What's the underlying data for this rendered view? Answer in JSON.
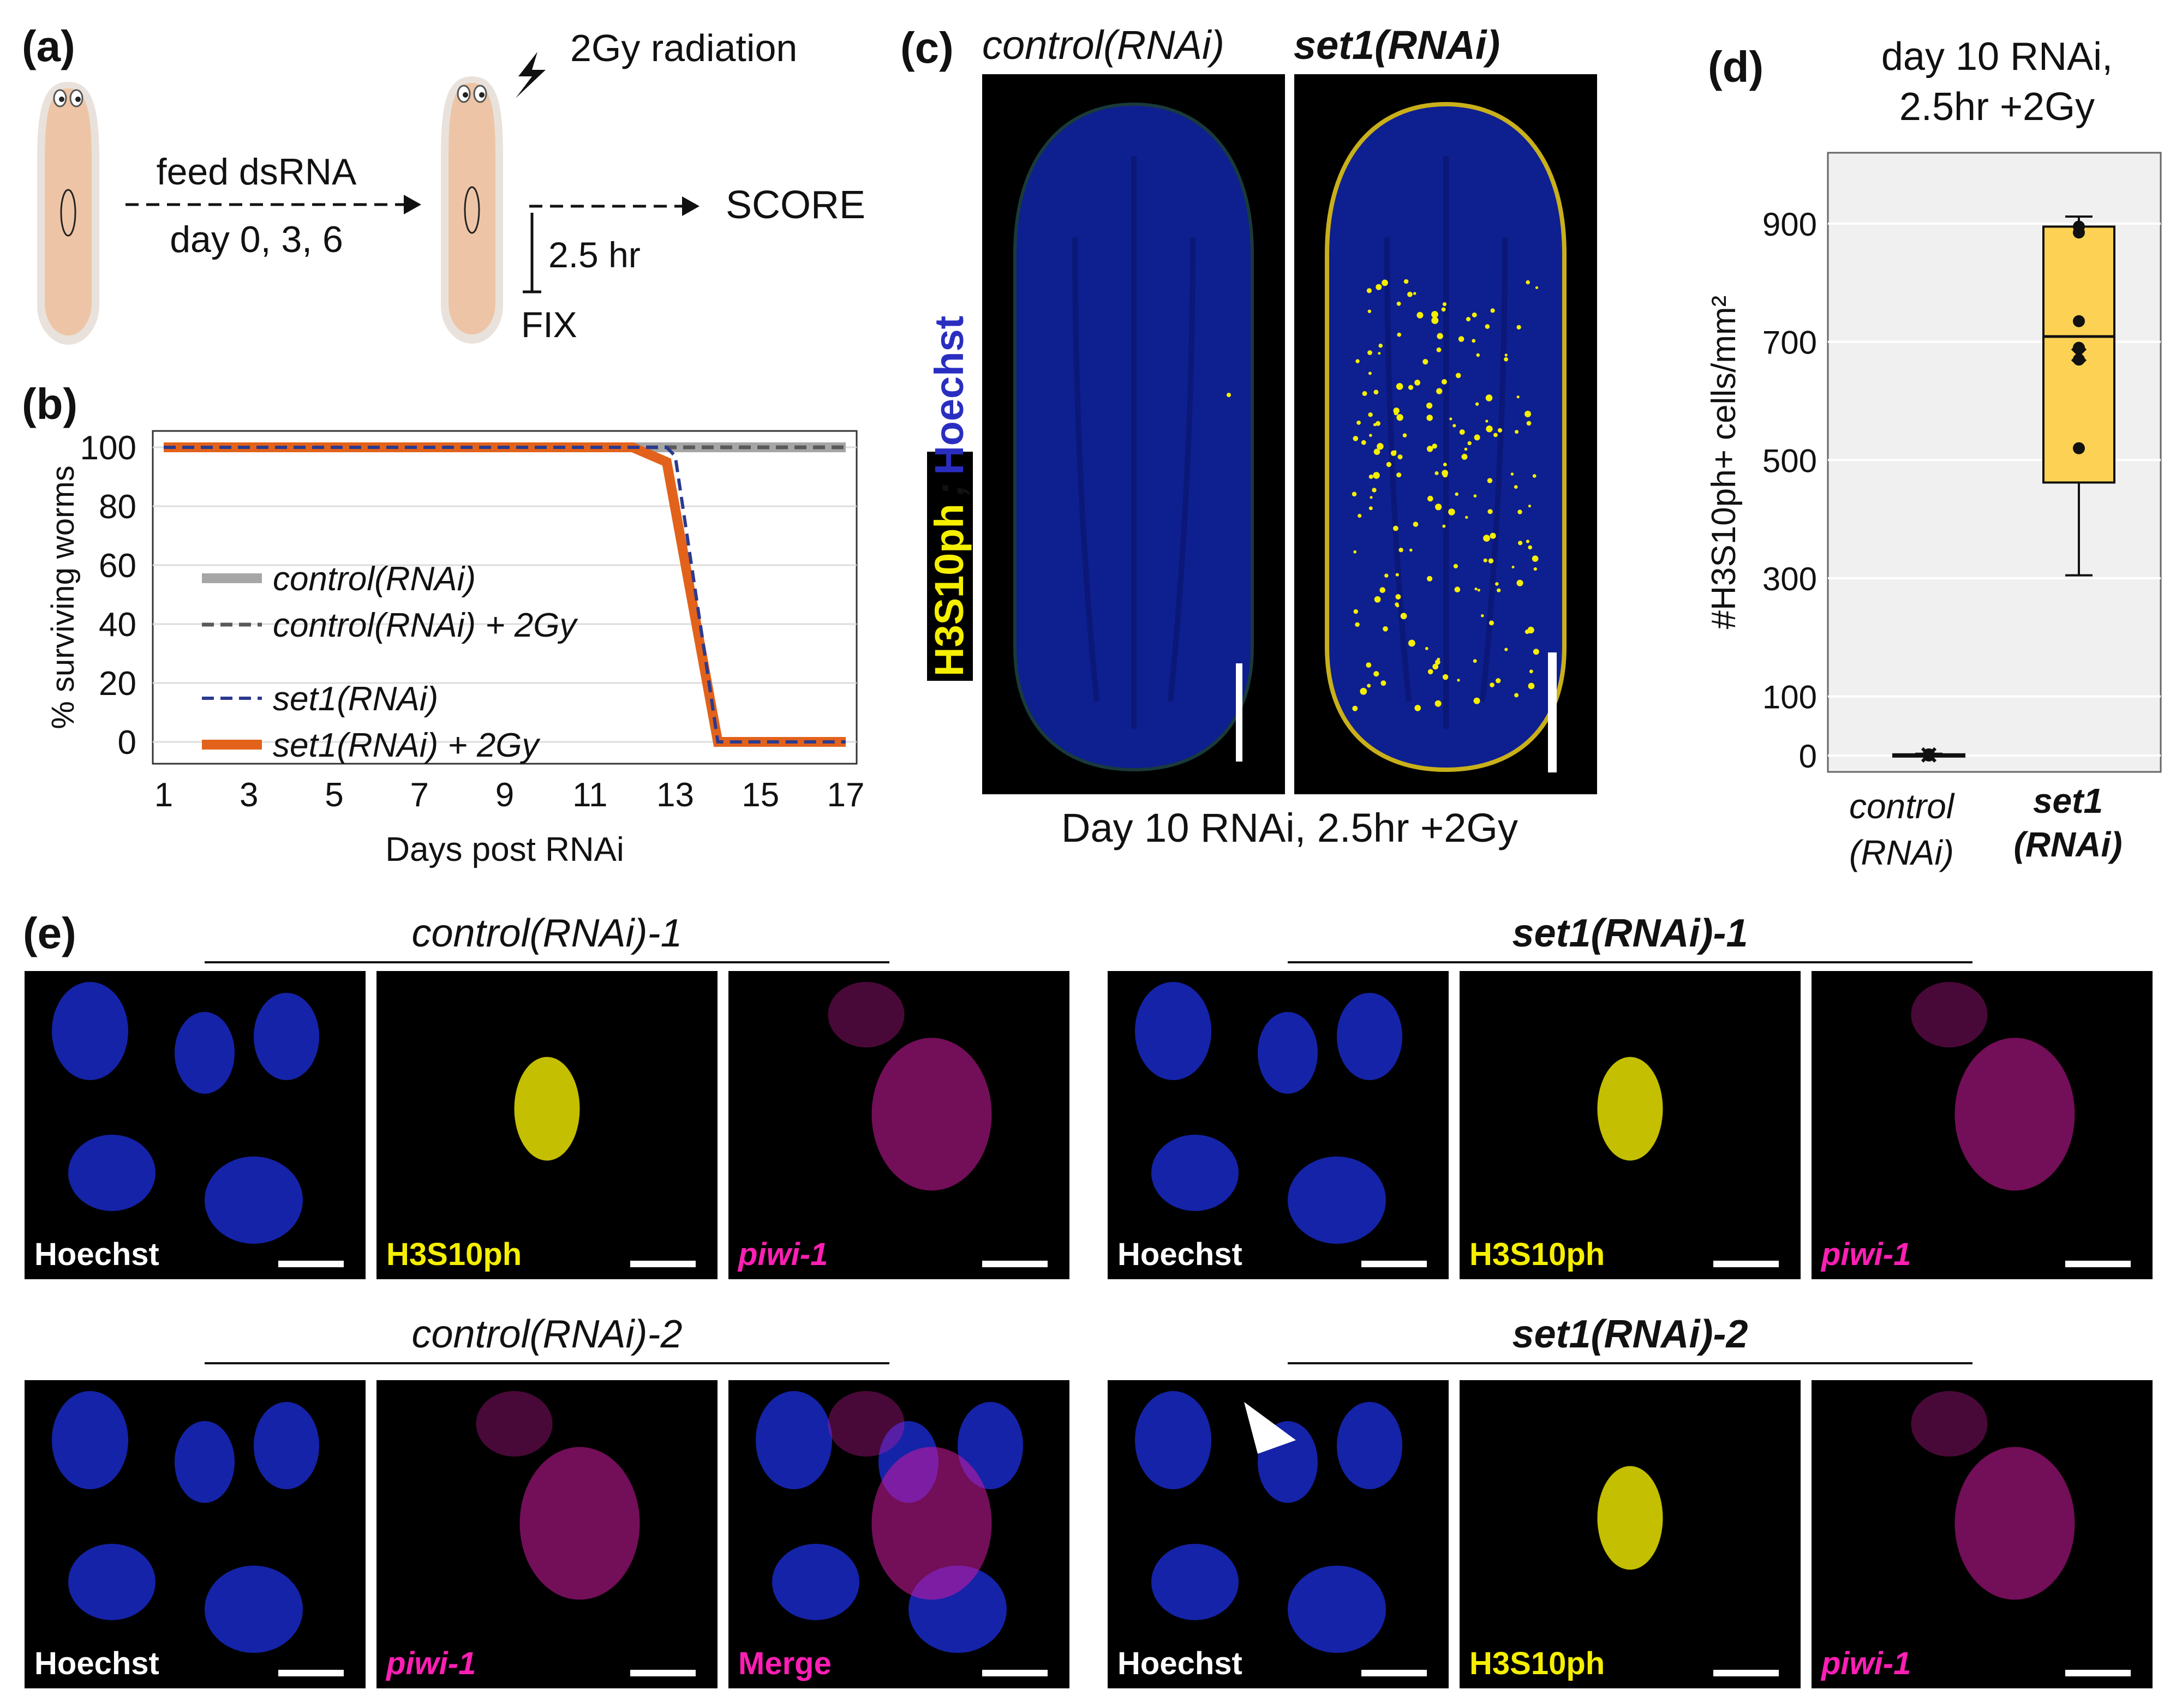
{
  "panel_a": {
    "label": "(a)",
    "feed_text": "feed dsRNA",
    "days_text": "day 0, 3, 6",
    "radiation_text": "2Gy radiation",
    "score_text": "SCORE",
    "interval_text": "2.5 hr",
    "fix_text": "FIX"
  },
  "panel_b": {
    "label": "(b)"
  },
  "panel_c": {
    "label": "(c)",
    "col_left": "control(RNAi)",
    "col_right": "set1(RNAi)",
    "stain_a": "H3S10ph",
    "stain_sep": ";",
    "stain_b": "Hoechst",
    "caption": "Day 10 RNAi, 2.5hr +2Gy"
  },
  "panel_d": {
    "label": "(d)",
    "title_line1": "day 10 RNAi,",
    "title_line2": "2.5hr +2Gy"
  },
  "panel_e": {
    "label": "(e)",
    "groups": [
      {
        "title": "control(RNAi)-1",
        "panels": [
          {
            "text": "Hoechst",
            "color": "#ffffff"
          },
          {
            "text": "H3S10ph",
            "color": "#f5ef00"
          },
          {
            "text": "piwi-1",
            "color": "#ff1fb4"
          }
        ]
      },
      {
        "title": "set1(RNAi)-1",
        "panels": [
          {
            "text": "Hoechst",
            "color": "#ffffff"
          },
          {
            "text": "H3S10ph",
            "color": "#f5ef00"
          },
          {
            "text": "piwi-1",
            "color": "#ff1fb4"
          }
        ]
      },
      {
        "title": "control(RNAi)-2",
        "panels": [
          {
            "text": "Hoechst",
            "color": "#ffffff"
          },
          {
            "text": "piwi-1",
            "color": "#ff1fb4"
          },
          {
            "text": "Merge",
            "color": "#ff1fb4"
          }
        ]
      },
      {
        "title": "set1(RNAi)-2",
        "panels": [
          {
            "text": "Hoechst",
            "color": "#ffffff"
          },
          {
            "text": "H3S10ph",
            "color": "#f5ef00"
          },
          {
            "text": "piwi-1",
            "color": "#ff1fb4"
          }
        ]
      }
    ]
  },
  "chart_data": [
    {
      "type": "line",
      "xlabel": "Days post RNAi",
      "ylabel": "% surviving worms",
      "xlim": [
        1,
        17
      ],
      "ylim": [
        0,
        100
      ],
      "xticks": [
        1,
        3,
        5,
        7,
        9,
        11,
        13,
        15,
        17
      ],
      "yticks": [
        0,
        20,
        40,
        60,
        80,
        100
      ],
      "grid": true,
      "legend_position": "left-center",
      "series": [
        {
          "name": "control(RNAi)",
          "style": "solid",
          "color": "#a6a6a6",
          "x": [
            1,
            17
          ],
          "y": [
            100,
            100
          ]
        },
        {
          "name": "control(RNAi) + 2Gy",
          "style": "dashed",
          "color": "#5a5a5a",
          "x": [
            1,
            17
          ],
          "y": [
            100,
            100
          ]
        },
        {
          "name": "set1(RNAi)",
          "style": "dashed",
          "color": "#2b3a8f",
          "x": [
            1,
            12.8,
            13,
            14,
            17
          ],
          "y": [
            100,
            100,
            97,
            0,
            0
          ]
        },
        {
          "name": "set1(RNAi) + 2Gy",
          "style": "solid",
          "color": "#e2621b",
          "x": [
            1,
            12,
            12.8,
            14,
            17
          ],
          "y": [
            100,
            100,
            95,
            0,
            0
          ]
        }
      ]
    },
    {
      "type": "box",
      "title": "day 10 RNAi, 2.5hr +2Gy",
      "ylabel": "#H3S10ph+ cells/mm²",
      "yticks": [
        0,
        100,
        300,
        500,
        700,
        900
      ],
      "ylim": [
        -10,
        1000
      ],
      "grid": true,
      "categories": [
        "control (RNAi)",
        "set1 (RNAi)"
      ],
      "boxes": [
        {
          "category": "control (RNAi)",
          "min": 0,
          "q1": 0,
          "median": 0,
          "q3": 2,
          "max": 3,
          "mean": 1,
          "points": [
            0,
            1,
            2
          ]
        },
        {
          "category": "set1 (RNAi)",
          "color": "#fdd254",
          "min": 305,
          "q1": 462,
          "median": 709,
          "q3": 895,
          "max": 912,
          "mean": 678,
          "points": [
            520,
            670,
            690,
            735,
            885,
            895
          ]
        }
      ]
    }
  ]
}
